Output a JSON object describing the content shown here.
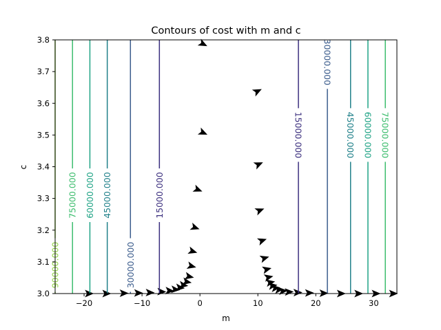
{
  "chart_data": {
    "type": "contour",
    "title": "Contours of cost with m and c",
    "xlabel": "m",
    "ylabel": "c",
    "xlim": [
      -25,
      34
    ],
    "ylim": [
      3.0,
      3.8
    ],
    "x_ticks": [
      -20,
      -10,
      0,
      10,
      20,
      30
    ],
    "x_tick_labels": [
      "−20",
      "−10",
      "0",
      "10",
      "20",
      "30"
    ],
    "y_ticks": [
      3.0,
      3.1,
      3.2,
      3.3,
      3.4,
      3.5,
      3.6,
      3.7,
      3.8
    ],
    "y_tick_labels": [
      "3.0",
      "3.1",
      "3.2",
      "3.3",
      "3.4",
      "3.5",
      "3.6",
      "3.7",
      "3.8"
    ],
    "grid": false,
    "contours": [
      {
        "level": 15000,
        "label": "15000.000",
        "color": "#3b2f7e",
        "m": [
          -7,
          17
        ],
        "label_c": [
          3.31,
          3.5
        ]
      },
      {
        "level": 30000,
        "label": "30000.000",
        "color": "#3b5c8c",
        "m": [
          -12,
          22
        ],
        "label_c": [
          3.09,
          3.73
        ]
      },
      {
        "level": 45000,
        "label": "45000.000",
        "color": "#21818a",
        "m": [
          -16,
          26
        ],
        "label_c": [
          3.31,
          3.5
        ]
      },
      {
        "level": 60000,
        "label": "60000.000",
        "color": "#1fa385",
        "m": [
          -19,
          29
        ],
        "label_c": [
          3.31,
          3.5
        ]
      },
      {
        "level": 75000,
        "label": "75000.000",
        "color": "#3cbd6d",
        "m": [
          -22,
          32
        ],
        "label_c": [
          3.31,
          3.5
        ]
      },
      {
        "level": 90000,
        "label": "90000.000",
        "color": "#8fd144",
        "m": [
          -25
        ],
        "label_c": [
          3.09
        ]
      }
    ],
    "arrows": {
      "color": "#000000",
      "points": [
        {
          "m": 0.2,
          "c": 3.79,
          "dx": 1,
          "dy": 0.5
        },
        {
          "m": 9.6,
          "c": 3.635,
          "dx": 1,
          "dy": -0.5
        },
        {
          "m": 0.2,
          "c": 3.51,
          "dx": 1,
          "dy": 0.45
        },
        {
          "m": 9.8,
          "c": 3.405,
          "dx": 1,
          "dy": -0.45
        },
        {
          "m": -0.7,
          "c": 3.33,
          "dx": 1,
          "dy": 0.4
        },
        {
          "m": 10.0,
          "c": 3.26,
          "dx": 1,
          "dy": -0.4
        },
        {
          "m": -1.2,
          "c": 3.21,
          "dx": 1,
          "dy": 0.35
        },
        {
          "m": 10.4,
          "c": 3.165,
          "dx": 1,
          "dy": -0.35
        },
        {
          "m": -1.6,
          "c": 3.135,
          "dx": 1,
          "dy": 0.3
        },
        {
          "m": 10.8,
          "c": 3.11,
          "dx": 1,
          "dy": -0.3
        },
        {
          "m": -1.8,
          "c": 3.088,
          "dx": 1,
          "dy": 0.25
        },
        {
          "m": 11.2,
          "c": 3.075,
          "dx": 1,
          "dy": -0.25
        },
        {
          "m": -2.2,
          "c": 3.055,
          "dx": 1,
          "dy": 0.22
        },
        {
          "m": 11.5,
          "c": 3.05,
          "dx": 1,
          "dy": -0.22
        },
        {
          "m": -2.6,
          "c": 3.038,
          "dx": 1,
          "dy": 0.18
        },
        {
          "m": 11.8,
          "c": 3.034,
          "dx": 1,
          "dy": -0.18
        },
        {
          "m": -3.2,
          "c": 3.027,
          "dx": 1,
          "dy": 0.14
        },
        {
          "m": 12.2,
          "c": 3.024,
          "dx": 1,
          "dy": -0.14
        },
        {
          "m": -3.8,
          "c": 3.019,
          "dx": 1,
          "dy": 0.1
        },
        {
          "m": 12.7,
          "c": 3.017,
          "dx": 1,
          "dy": -0.1
        },
        {
          "m": -4.6,
          "c": 3.013,
          "dx": 1,
          "dy": 0.07
        },
        {
          "m": 13.3,
          "c": 3.012,
          "dx": 1,
          "dy": -0.07
        },
        {
          "m": -5.6,
          "c": 3.009,
          "dx": 1,
          "dy": 0.05
        },
        {
          "m": 14.0,
          "c": 3.008,
          "dx": 1,
          "dy": -0.05
        },
        {
          "m": -7.0,
          "c": 3.006,
          "dx": 1,
          "dy": 0.03
        },
        {
          "m": 15.0,
          "c": 3.005,
          "dx": 1,
          "dy": -0.03
        },
        {
          "m": -9.0,
          "c": 3.003,
          "dx": 1,
          "dy": 0.02
        },
        {
          "m": 16.5,
          "c": 3.003,
          "dx": 1,
          "dy": -0.02
        },
        {
          "m": -11.0,
          "c": 3.002,
          "dx": 1,
          "dy": 0.01
        },
        {
          "m": 18.5,
          "c": 3.002,
          "dx": 1,
          "dy": -0.01
        },
        {
          "m": -13.5,
          "c": 3.001,
          "dx": 1,
          "dy": 0.0
        },
        {
          "m": 21.0,
          "c": 3.001,
          "dx": 1,
          "dy": 0.0
        },
        {
          "m": -16.5,
          "c": 3.0,
          "dx": 1,
          "dy": 0.0
        },
        {
          "m": 24.0,
          "c": 3.0,
          "dx": 1,
          "dy": 0.0
        },
        {
          "m": -19.5,
          "c": 3.0,
          "dx": 1,
          "dy": 0.0
        },
        {
          "m": 27.0,
          "c": 3.0,
          "dx": 1,
          "dy": 0.0
        },
        {
          "m": 30.0,
          "c": 3.0,
          "dx": 1,
          "dy": 0.0
        },
        {
          "m": 33.0,
          "c": 3.0,
          "dx": 1,
          "dy": 0.0
        }
      ]
    }
  }
}
